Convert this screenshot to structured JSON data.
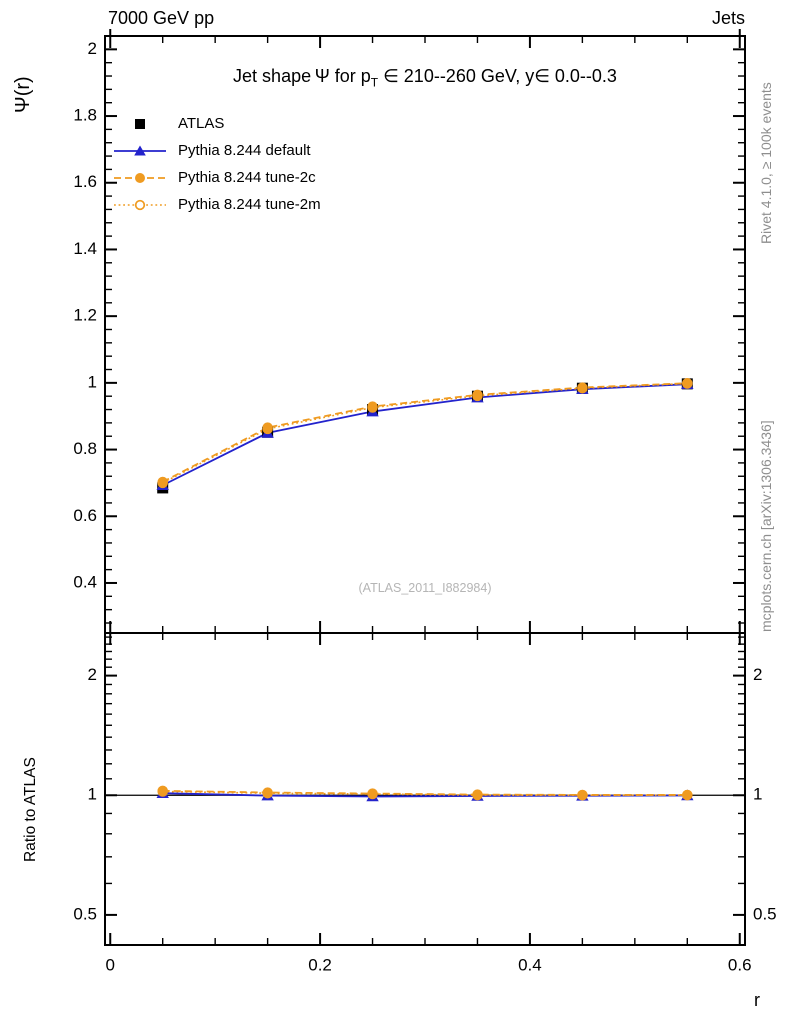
{
  "header": {
    "left_title": "7000 GeV pp",
    "right_title": "Jets"
  },
  "title": {
    "pre": "Jet shape Ψ for p",
    "sub": "T",
    "post": " ∈ 210--260 GeV, y∈ 0.0--0.3"
  },
  "side_notes": {
    "rivet": "Rivet 4.1.0, ≥ 100k events",
    "mcplots": "mcplots.cern.ch [arXiv:1306.3436]"
  },
  "watermark": "(ATLAS_2011_I882984)",
  "colors": {
    "atlas_black": "#000000",
    "pythia_blue": "#2323cc",
    "pythia_orange": "#ef9b21",
    "note_gray": "#8e8e8e",
    "watermark_gray": "#b5b5b5",
    "frame_black": "#000000"
  },
  "chart_data": [
    {
      "type": "line",
      "panel": "main",
      "title": "Jet shape Ψ for p_T ∈ 210--260 GeV, y∈ 0.0--0.3",
      "xlabel": "r",
      "ylabel": "Ψ(r)",
      "xlim": [
        -0.005,
        0.605
      ],
      "ylim": [
        0.25,
        2.04
      ],
      "grid": false,
      "legend_position": "top-left",
      "xticks": {
        "values": [
          0,
          0.2,
          0.4,
          0.6
        ],
        "labels": [
          "0",
          "0.2",
          "0.4",
          "0.6"
        ],
        "minor_step": 0.05
      },
      "yticks": {
        "values": [
          0.4,
          0.6,
          0.8,
          1.0,
          1.2,
          1.4,
          1.6,
          1.8,
          2.0
        ],
        "labels": [
          "0.4",
          "0.6",
          "0.8",
          "1",
          "1.2",
          "1.4",
          "1.6",
          "1.8",
          "2"
        ],
        "minor_step": 0.04
      },
      "x": [
        0.05,
        0.15,
        0.25,
        0.35,
        0.45,
        0.55
      ],
      "series": [
        {
          "name": "ATLAS",
          "marker": "filled-square",
          "line": "none",
          "color": "#000000",
          "values": [
            0.685,
            0.852,
            0.92,
            0.96,
            0.984,
            0.997
          ]
        },
        {
          "name": "Pythia 8.244 default",
          "marker": "filled-triangle",
          "line": "solid",
          "color": "#2323cc",
          "values": [
            0.693,
            0.85,
            0.914,
            0.956,
            0.981,
            0.996
          ]
        },
        {
          "name": "Pythia 8.244 tune-2c",
          "marker": "filled-circle",
          "line": "dashed",
          "color": "#ef9b21",
          "values": [
            0.703,
            0.866,
            0.929,
            0.964,
            0.986,
            0.999
          ]
        },
        {
          "name": "Pythia 8.244 tune-2m",
          "marker": "open-circle",
          "line": "dotted",
          "color": "#ef9b21",
          "values": [
            0.7,
            0.862,
            0.926,
            0.961,
            0.984,
            0.998
          ]
        }
      ]
    },
    {
      "type": "line",
      "panel": "ratio",
      "ylabel": "Ratio to ATLAS",
      "xlim": [
        -0.005,
        0.605
      ],
      "ylim": [
        0.42,
        2.56
      ],
      "yscale": "log",
      "grid": false,
      "reference_line": 1,
      "xticks": {
        "values": [
          0,
          0.2,
          0.4,
          0.6
        ],
        "labels": [
          "0",
          "0.2",
          "0.4",
          "0.6"
        ],
        "minor_step": 0.05
      },
      "yticks": {
        "values": [
          0.5,
          1,
          2
        ],
        "labels": [
          "0.5",
          "1",
          "2"
        ]
      },
      "x": [
        0.05,
        0.15,
        0.25,
        0.35,
        0.45,
        0.55
      ],
      "series": [
        {
          "name": "Pythia 8.244 default",
          "marker": "filled-triangle",
          "line": "solid",
          "color": "#2323cc",
          "values": [
            1.012,
            0.998,
            0.993,
            0.996,
            0.997,
            0.999
          ]
        },
        {
          "name": "Pythia 8.244 tune-2c",
          "marker": "filled-circle",
          "line": "dashed",
          "color": "#ef9b21",
          "values": [
            1.026,
            1.016,
            1.01,
            1.004,
            1.002,
            1.002
          ]
        },
        {
          "name": "Pythia 8.244 tune-2m",
          "marker": "open-circle",
          "line": "dotted",
          "color": "#ef9b21",
          "values": [
            1.022,
            1.012,
            1.007,
            1.001,
            1.0,
            1.001
          ]
        }
      ]
    }
  ]
}
